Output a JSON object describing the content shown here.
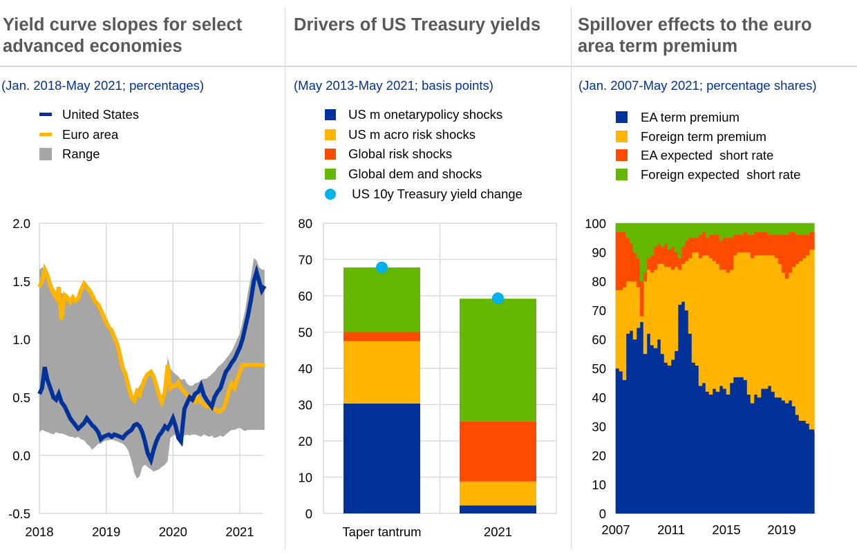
{
  "colors": {
    "blue": "#003299",
    "yellow": "#ffb400",
    "red": "#ff4b00",
    "green": "#65b800",
    "cyan": "#00b1ea",
    "grey": "#a6a6a6",
    "grid": "#d9d9d9",
    "title": "#595959"
  },
  "panels": [
    {
      "title_lines": [
        "Yield curve slopes for select",
        "advanced economies"
      ],
      "subtitle": "(Jan. 2018-May 2021; percentages)",
      "legend": [
        {
          "label": "United States",
          "swatch": "line",
          "color": "#003299"
        },
        {
          "label": "Euro area",
          "swatch": "line",
          "color": "#ffb400"
        },
        {
          "label": "Range",
          "swatch": "square",
          "color": "#a6a6a6"
        }
      ]
    },
    {
      "title_lines": [
        "Drivers of US Treasury yields"
      ],
      "subtitle": "(May 2013-May 2021; basis points)",
      "legend": [
        {
          "label": "US m onetarypolicy shocks",
          "swatch": "square",
          "color": "#003299"
        },
        {
          "label": "US m acro risk shocks",
          "swatch": "square",
          "color": "#ffb400"
        },
        {
          "label": "Global risk shocks",
          "swatch": "square",
          "color": "#ff4b00"
        },
        {
          "label": "Global dem and shocks",
          "swatch": "square",
          "color": "#65b800"
        },
        {
          "label": " US 10y Treasury yield change",
          "swatch": "dot",
          "color": "#00b1ea"
        }
      ]
    },
    {
      "title_lines": [
        "Spillover effects to the euro",
        "area term premium"
      ],
      "subtitle": "(Jan. 2007-May 2021; percentage shares)",
      "legend": [
        {
          "label": "EA term premium",
          "swatch": "square",
          "color": "#003299"
        },
        {
          "label": "Foreign term premium",
          "swatch": "square",
          "color": "#ffb400"
        },
        {
          "label": "EA expected  short rate",
          "swatch": "square",
          "color": "#ff4b00"
        },
        {
          "label": "Foreign expected  short rate",
          "swatch": "square",
          "color": "#65b800"
        }
      ]
    }
  ],
  "chart_data": [
    {
      "type": "line",
      "title": "Yield curve slopes for select advanced economies",
      "subtitle": "(Jan. 2018-May 2021; percentages)",
      "xlabel": "",
      "ylabel": "",
      "xlim": [
        2018.0,
        2021.37
      ],
      "ylim": [
        -0.5,
        2.0
      ],
      "yticks": [
        2.0,
        1.5,
        1.0,
        0.5,
        0.0,
        -0.5
      ],
      "ytick_labels": [
        "2.0",
        "1.5",
        "1.0",
        "0.5",
        "0.0",
        "-0.5"
      ],
      "xticks": [
        2018,
        2019,
        2020,
        2021
      ],
      "xtick_labels": [
        "2018",
        "2019",
        "2020",
        "2021"
      ],
      "grid": true,
      "legend_position": "top-left",
      "x": [
        2018.0,
        2018.04,
        2018.08,
        2018.12,
        2018.17,
        2018.21,
        2018.25,
        2018.29,
        2018.33,
        2018.38,
        2018.42,
        2018.46,
        2018.5,
        2018.54,
        2018.58,
        2018.62,
        2018.67,
        2018.71,
        2018.75,
        2018.79,
        2018.83,
        2018.88,
        2018.92,
        2018.96,
        2019.0,
        2019.04,
        2019.08,
        2019.12,
        2019.17,
        2019.21,
        2019.25,
        2019.29,
        2019.33,
        2019.38,
        2019.42,
        2019.46,
        2019.5,
        2019.54,
        2019.58,
        2019.62,
        2019.67,
        2019.71,
        2019.75,
        2019.79,
        2019.83,
        2019.88,
        2019.92,
        2019.96,
        2020.0,
        2020.04,
        2020.08,
        2020.12,
        2020.17,
        2020.21,
        2020.25,
        2020.29,
        2020.33,
        2020.38,
        2020.42,
        2020.46,
        2020.5,
        2020.54,
        2020.58,
        2020.62,
        2020.67,
        2020.71,
        2020.75,
        2020.79,
        2020.83,
        2020.88,
        2020.92,
        2020.96,
        2021.0,
        2021.04,
        2021.08,
        2021.12,
        2021.17,
        2021.21,
        2021.25,
        2021.29,
        2021.33,
        2021.37
      ],
      "series": [
        {
          "name": "United States",
          "color": "#003299",
          "values": [
            0.53,
            0.58,
            0.76,
            0.65,
            0.57,
            0.5,
            0.48,
            0.53,
            0.46,
            0.42,
            0.37,
            0.32,
            0.29,
            0.26,
            0.23,
            0.25,
            0.28,
            0.32,
            0.29,
            0.26,
            0.24,
            0.2,
            0.14,
            0.16,
            0.17,
            0.18,
            0.16,
            0.18,
            0.17,
            0.16,
            0.15,
            0.18,
            0.2,
            0.22,
            0.26,
            0.27,
            0.25,
            0.2,
            0.12,
            0.02,
            -0.04,
            0.05,
            0.12,
            0.17,
            0.2,
            0.25,
            0.23,
            0.27,
            0.32,
            0.25,
            0.15,
            0.12,
            0.4,
            0.45,
            0.5,
            0.48,
            0.53,
            0.55,
            0.6,
            0.52,
            0.48,
            0.45,
            0.42,
            0.5,
            0.55,
            0.58,
            0.65,
            0.72,
            0.75,
            0.8,
            0.83,
            0.88,
            0.93,
            1.0,
            1.1,
            1.2,
            1.35,
            1.5,
            1.58,
            1.5,
            1.42,
            1.46
          ]
        },
        {
          "name": "Euro area",
          "color": "#ffb400",
          "values": [
            1.45,
            1.5,
            1.6,
            1.55,
            1.45,
            1.4,
            1.36,
            1.45,
            1.17,
            1.38,
            1.36,
            1.32,
            1.36,
            1.33,
            1.35,
            1.42,
            1.48,
            1.45,
            1.42,
            1.38,
            1.33,
            1.3,
            1.25,
            1.2,
            1.15,
            1.1,
            1.08,
            1.02,
            0.95,
            0.85,
            0.75,
            0.7,
            0.6,
            0.5,
            0.47,
            0.55,
            0.52,
            0.6,
            0.66,
            0.7,
            0.72,
            0.68,
            0.6,
            0.52,
            0.46,
            0.55,
            0.78,
            0.58,
            0.6,
            0.6,
            0.63,
            0.58,
            0.55,
            0.52,
            0.5,
            0.48,
            0.46,
            0.5,
            0.46,
            0.44,
            0.42,
            0.42,
            0.41,
            0.4,
            0.38,
            0.38,
            0.4,
            0.45,
            0.55,
            0.62,
            0.58,
            0.65,
            0.72,
            0.78,
            0.78,
            0.78,
            0.78,
            0.78,
            0.78,
            0.78,
            0.78,
            0.78
          ]
        },
        {
          "name": "Range",
          "type": "band",
          "color": "#a6a6a6",
          "upper": [
            1.6,
            1.62,
            1.6,
            1.58,
            1.5,
            1.45,
            1.4,
            1.45,
            1.4,
            1.38,
            1.36,
            1.35,
            1.36,
            1.34,
            1.36,
            1.42,
            1.48,
            1.46,
            1.42,
            1.38,
            1.34,
            1.3,
            1.25,
            1.2,
            1.15,
            1.1,
            1.08,
            1.02,
            0.95,
            0.85,
            0.76,
            0.7,
            0.62,
            0.52,
            0.48,
            0.56,
            0.6,
            0.64,
            0.68,
            0.72,
            0.74,
            0.7,
            0.64,
            0.56,
            0.5,
            0.58,
            0.85,
            0.75,
            0.72,
            0.7,
            0.68,
            0.65,
            0.66,
            0.62,
            0.6,
            0.6,
            0.62,
            0.63,
            0.65,
            0.66,
            0.66,
            0.68,
            0.7,
            0.72,
            0.76,
            0.78,
            0.8,
            0.83,
            0.86,
            0.9,
            0.95,
            1.0,
            1.05,
            1.15,
            1.25,
            1.4,
            1.55,
            1.7,
            1.68,
            1.62,
            1.6,
            1.6
          ],
          "lower": [
            0.2,
            0.22,
            0.21,
            0.2,
            0.19,
            0.18,
            0.2,
            0.19,
            0.19,
            0.18,
            0.17,
            0.16,
            0.16,
            0.15,
            0.16,
            0.14,
            0.13,
            0.1,
            0.08,
            0.05,
            0.07,
            0.1,
            0.1,
            0.12,
            0.13,
            0.13,
            0.14,
            0.13,
            0.12,
            0.11,
            0.1,
            0.08,
            0.04,
            -0.05,
            -0.15,
            -0.2,
            -0.18,
            -0.1,
            -0.08,
            -0.1,
            -0.12,
            -0.14,
            -0.13,
            -0.12,
            -0.1,
            -0.08,
            -0.05,
            0.15,
            0.17,
            0.18,
            0.19,
            0.18,
            0.17,
            0.18,
            0.17,
            0.18,
            0.18,
            0.17,
            0.16,
            0.18,
            0.17,
            0.16,
            0.17,
            0.15,
            0.16,
            0.17,
            0.16,
            0.18,
            0.2,
            0.22,
            0.22,
            0.23,
            0.24,
            0.22,
            0.21,
            0.22,
            0.22,
            0.22,
            0.22,
            0.22,
            0.22,
            0.22
          ]
        }
      ]
    },
    {
      "type": "bar",
      "stacked": true,
      "title": "Drivers of US Treasury yields",
      "subtitle": "(May 2013-May 2021; basis points)",
      "xlabel": "",
      "ylabel": "",
      "categories": [
        "Taper tantrum",
        "2021"
      ],
      "ylim": [
        0,
        80
      ],
      "yticks": [
        80,
        70,
        60,
        50,
        40,
        30,
        20,
        10,
        0
      ],
      "ytick_labels": [
        "80",
        "70",
        "60",
        "50",
        "40",
        "30",
        "20",
        "10",
        "0"
      ],
      "grid": true,
      "legend_position": "top-left",
      "series": [
        {
          "name": "US monetary policy shocks",
          "color": "#003299",
          "values": [
            30.3,
            2.2
          ]
        },
        {
          "name": "US macro risk shocks",
          "color": "#ffb400",
          "values": [
            17.2,
            6.6
          ]
        },
        {
          "name": "Global risk shocks",
          "color": "#ff4b00",
          "values": [
            2.5,
            16.6
          ]
        },
        {
          "name": "Global demand shocks",
          "color": "#65b800",
          "values": [
            17.8,
            33.8
          ]
        }
      ],
      "markers": {
        "name": "US 10y Treasury yield change",
        "color": "#00b1ea",
        "values": [
          67.8,
          59.3
        ]
      }
    },
    {
      "type": "area",
      "stacked": true,
      "title": "Spillover effects to the euro area term premium",
      "subtitle": "(Jan. 2007-May 2021; percentage shares)",
      "xlabel": "",
      "ylabel": "",
      "xlim": [
        2007.0,
        2021.37
      ],
      "ylim": [
        0,
        100
      ],
      "yticks": [
        100,
        90,
        80,
        70,
        60,
        50,
        40,
        30,
        20,
        10,
        0
      ],
      "ytick_labels": [
        "100",
        "90",
        "80",
        "70",
        "60",
        "50",
        "40",
        "30",
        "20",
        "10",
        "0"
      ],
      "xticks": [
        2007,
        2011,
        2015,
        2019
      ],
      "xtick_labels": [
        "2007",
        "2011",
        "2015",
        "2019"
      ],
      "grid": false,
      "legend_position": "top-left",
      "x": [
        2007.0,
        2007.25,
        2007.5,
        2007.75,
        2008.0,
        2008.25,
        2008.5,
        2008.75,
        2009.0,
        2009.25,
        2009.5,
        2009.75,
        2010.0,
        2010.25,
        2010.5,
        2010.75,
        2011.0,
        2011.25,
        2011.5,
        2011.75,
        2012.0,
        2012.25,
        2012.5,
        2012.75,
        2013.0,
        2013.25,
        2013.5,
        2013.75,
        2014.0,
        2014.25,
        2014.5,
        2014.75,
        2015.0,
        2015.25,
        2015.5,
        2015.75,
        2016.0,
        2016.25,
        2016.5,
        2016.75,
        2017.0,
        2017.25,
        2017.5,
        2017.75,
        2018.0,
        2018.25,
        2018.5,
        2018.75,
        2019.0,
        2019.25,
        2019.5,
        2019.75,
        2020.0,
        2020.25,
        2020.5,
        2020.75,
        2021.0,
        2021.37
      ],
      "series": [
        {
          "name": "EA term premium",
          "color": "#003299",
          "values": [
            50,
            49,
            46,
            62,
            63,
            60,
            64,
            66,
            55,
            62,
            58,
            57,
            60,
            55,
            52,
            51,
            53,
            56,
            72,
            73,
            70,
            62,
            52,
            51,
            44,
            45,
            42,
            41,
            43,
            42,
            44,
            43,
            41,
            45,
            47,
            47,
            47,
            46,
            41,
            38,
            41,
            40,
            43,
            43,
            44,
            42,
            40,
            40,
            39,
            38,
            39,
            37,
            34,
            32,
            32,
            31,
            29,
            28
          ]
        },
        {
          "name": "Foreign term premium",
          "color": "#ffb400",
          "values": [
            27,
            28,
            32,
            18,
            17,
            20,
            14,
            2,
            25,
            22,
            25,
            27,
            26,
            31,
            33,
            34,
            31,
            29,
            12,
            13,
            17,
            26,
            38,
            39,
            44,
            44,
            47,
            47,
            44,
            44,
            40,
            41,
            42,
            39,
            42,
            43,
            43,
            44,
            49,
            50,
            48,
            49,
            46,
            46,
            45,
            47,
            48,
            46,
            44,
            43,
            44,
            48,
            52,
            55,
            56,
            58,
            62,
            64
          ]
        },
        {
          "name": "EA expected short rate",
          "color": "#ff4b00",
          "values": [
            20,
            20,
            19,
            15,
            13,
            10,
            10,
            12,
            3,
            4,
            6,
            8,
            7,
            6,
            8,
            6,
            8,
            5,
            4,
            6,
            7,
            7,
            5,
            5,
            8,
            8,
            6,
            8,
            9,
            10,
            10,
            11,
            12,
            11,
            7,
            6,
            6,
            7,
            6,
            8,
            8,
            8,
            8,
            8,
            7,
            7,
            8,
            10,
            13,
            15,
            14,
            12,
            10,
            9,
            8,
            7,
            6,
            5
          ]
        },
        {
          "name": "Foreign expected short rate",
          "color": "#65b800",
          "values": [
            3,
            3,
            3,
            5,
            7,
            10,
            12,
            20,
            17,
            12,
            11,
            8,
            7,
            8,
            7,
            9,
            8,
            10,
            12,
            8,
            6,
            5,
            5,
            5,
            4,
            3,
            5,
            4,
            4,
            4,
            6,
            5,
            5,
            5,
            4,
            4,
            4,
            3,
            4,
            4,
            3,
            3,
            3,
            3,
            4,
            4,
            4,
            4,
            4,
            4,
            3,
            3,
            4,
            4,
            4,
            4,
            3,
            3
          ]
        }
      ]
    }
  ]
}
